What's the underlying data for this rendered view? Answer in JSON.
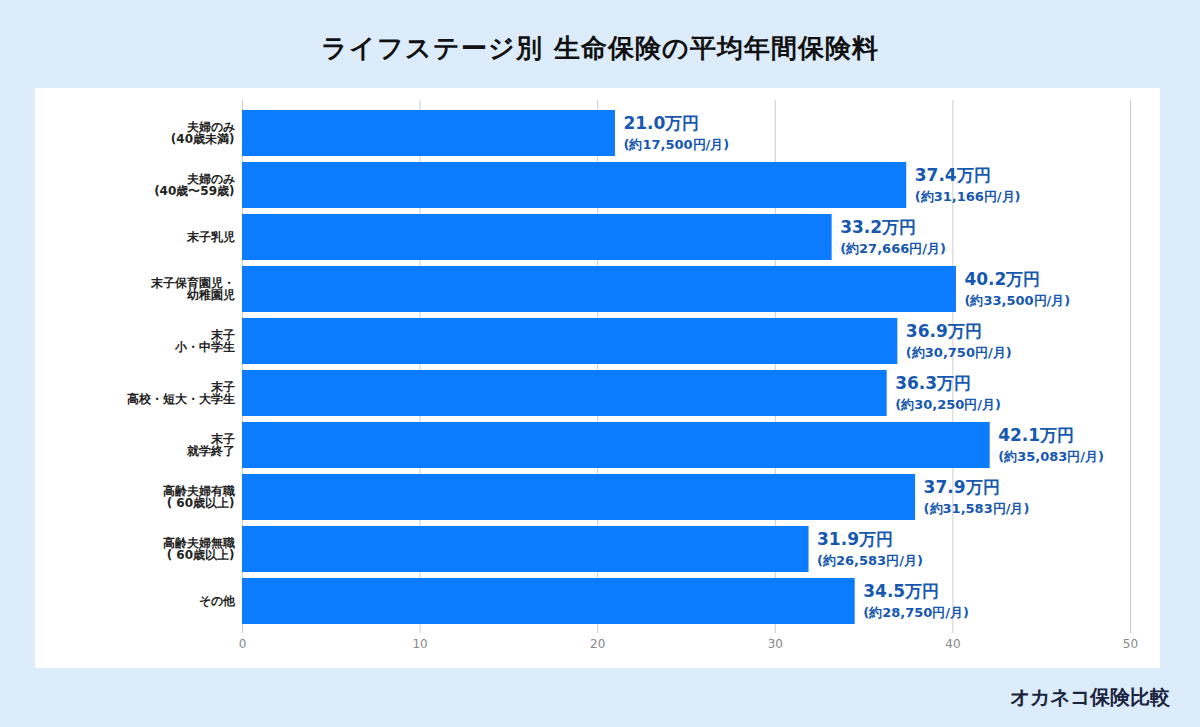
{
  "chart_data": {
    "type": "bar",
    "title": "ライフステージ別 生命保険の平均年間保険料",
    "caption": "オカネコ保険比較",
    "orientation": "horizontal",
    "categories": [
      "夫婦のみ\n(40歳未満)",
      "夫婦のみ\n(40歳〜59歳)",
      "末子乳児",
      "末子保育園児・\n幼稚園児",
      "末子\n小・中学生",
      "末子\n高校・短大・大学生",
      "末子\n就学終了",
      "高齢夫婦有職\n( 60歳以上)",
      "高齢夫婦無職\n( 60歳以上)",
      "その他"
    ],
    "values": [
      21.0,
      37.4,
      33.2,
      40.2,
      36.9,
      36.3,
      42.1,
      37.9,
      31.9,
      34.5
    ],
    "value_labels": [
      "21.0万円",
      "37.4万円",
      "33.2万円",
      "40.2万円",
      "36.9万円",
      "36.3万円",
      "42.1万円",
      "37.9万円",
      "31.9万円",
      "34.5万円"
    ],
    "monthly_labels": [
      "(約17,500円/月)",
      "(約31,166円/月)",
      "(約27,666円/月)",
      "(約33,500円/月)",
      "(約30,750円/月)",
      "(約30,250円/月)",
      "(約35,083円/月)",
      "(約31,583円/月)",
      "(約26,583円/月)",
      "(約28,750円/月)"
    ],
    "color": "#0b7bff",
    "xlim": [
      0,
      50
    ],
    "xticks": [
      0,
      10,
      20,
      30,
      40,
      50
    ],
    "grid": true,
    "data_labels": true
  }
}
